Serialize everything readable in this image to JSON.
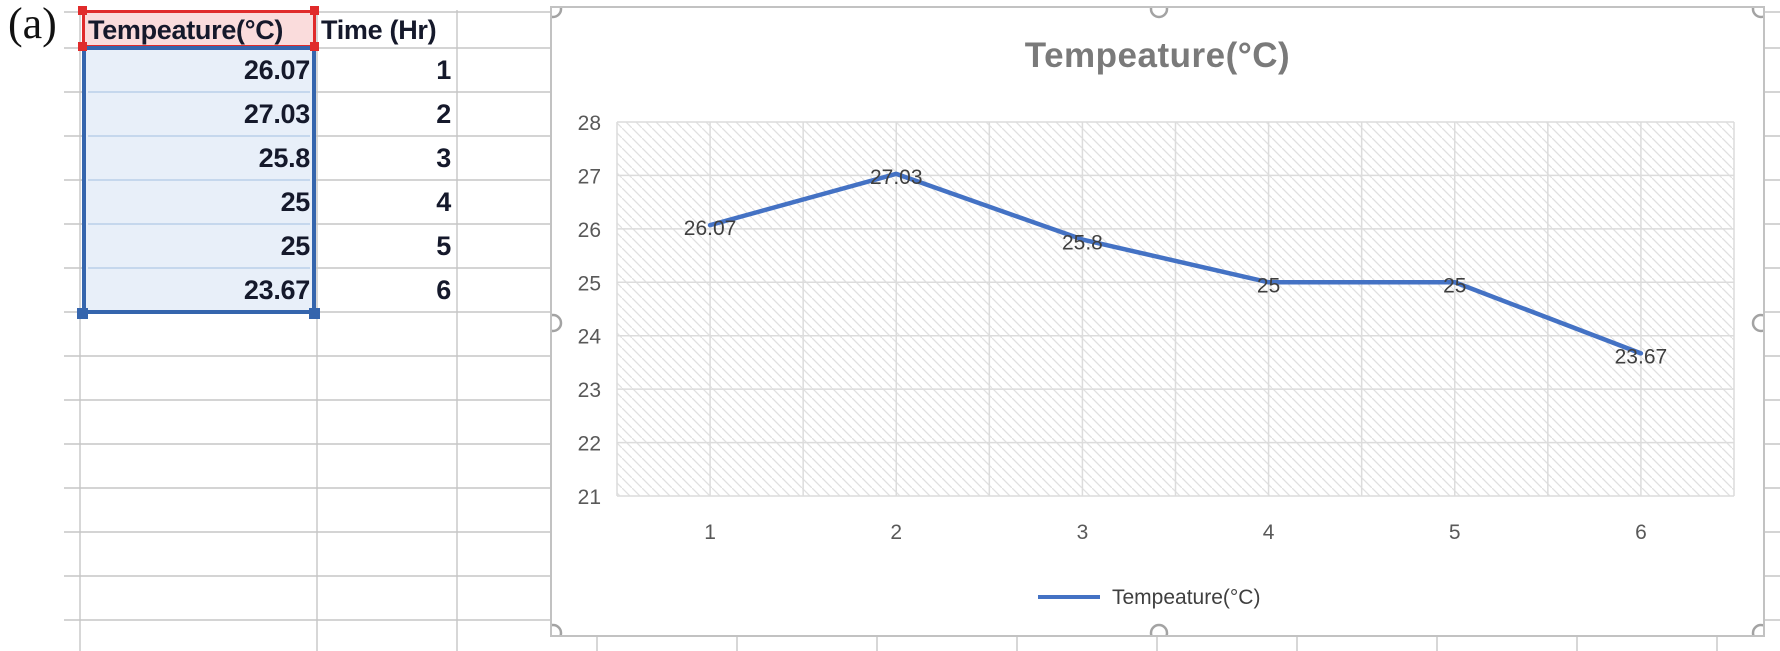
{
  "figure_label": "(a)",
  "table": {
    "columns": [
      {
        "header": "Tempeature(°C)",
        "values": [
          "26.07",
          "27.03",
          "25.8",
          "25",
          "25",
          "23.67"
        ],
        "highlight": "series-values"
      },
      {
        "header": "Time (Hr)",
        "values": [
          "1",
          "2",
          "3",
          "4",
          "5",
          "6"
        ],
        "highlight": "none"
      }
    ]
  },
  "chart_data": {
    "type": "line",
    "title": "Tempeature(°C)",
    "categories": [
      1,
      2,
      3,
      4,
      5,
      6
    ],
    "xtick_labels": [
      "1",
      "2",
      "3",
      "4",
      "5",
      "6"
    ],
    "series": [
      {
        "name": "Tempeature(°C)",
        "color": "#4472C4",
        "values": [
          26.07,
          27.03,
          25.8,
          25,
          25,
          23.67
        ],
        "data_labels": [
          "26.07",
          "27.03",
          "25.8",
          "25",
          "25",
          "23.67"
        ]
      }
    ],
    "ylim": [
      21,
      28
    ],
    "ytick_step": 1,
    "ytick_labels_top_to_bottom": [
      "28",
      "27",
      "26",
      "25",
      "24",
      "23",
      "22",
      "21"
    ],
    "grid": true,
    "plot_background": "diagonal-hatch",
    "legend_position": "bottom",
    "chart_selected_with_handles": true
  },
  "colors": {
    "series_line": "#4472C4",
    "selection_blue_border": "#3565AD",
    "selection_blue_fill": "#E8EFF9",
    "selection_blue_rowsep": "#C5D7ED",
    "selection_red_border": "#E02B2B",
    "selection_red_fill": "#FADCDC",
    "chart_border": "#C2C2C2",
    "chart_gridline": "#DCDCDC",
    "hatch_line": "#E0E0E0",
    "axis_text": "#595959",
    "title_text": "#7A7A7A",
    "data_label_text": "#3F3F3F",
    "sheet_gridline": "#C6C6C6",
    "cell_text": "#15192B",
    "handle_ring": "#A3A3A3"
  }
}
